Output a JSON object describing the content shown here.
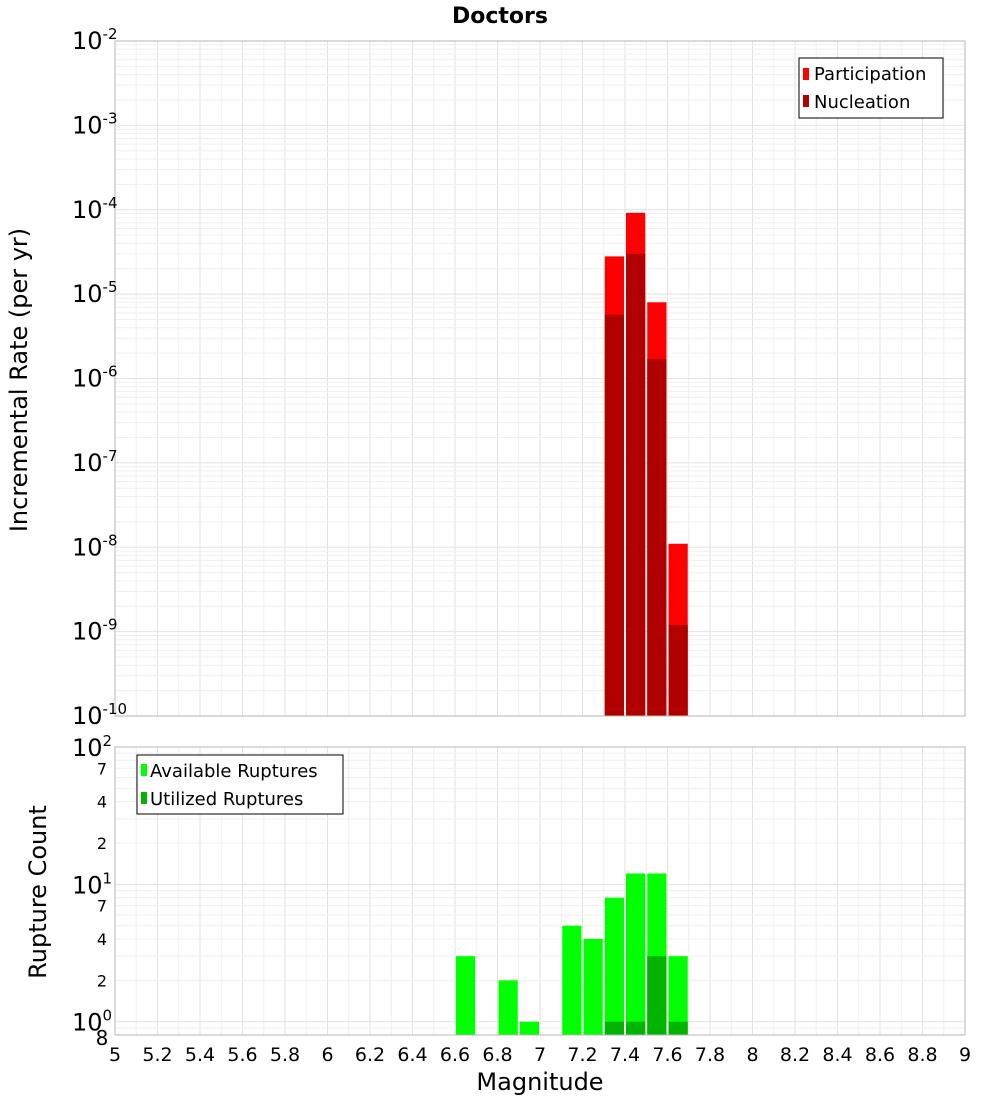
{
  "chart_data": [
    {
      "type": "bar",
      "title": "Doctors",
      "ylabel": "Incremental Rate (per yr)",
      "yscale": "log",
      "ylim": [
        1e-10,
        0.01
      ],
      "bin_width": 0.1,
      "y_tick_labels": [
        {
          "base": "10",
          "exp": "-10"
        },
        {
          "base": "10",
          "exp": "-9"
        },
        {
          "base": "10",
          "exp": "-8"
        },
        {
          "base": "10",
          "exp": "-7"
        },
        {
          "base": "10",
          "exp": "-6"
        },
        {
          "base": "10",
          "exp": "-5"
        },
        {
          "base": "10",
          "exp": "-4"
        },
        {
          "base": "10",
          "exp": "-3"
        },
        {
          "base": "10",
          "exp": "-2"
        }
      ],
      "legend": [
        {
          "label": "Participation",
          "color": "#ff0000"
        },
        {
          "label": "Nucleation",
          "color": "#b00000"
        }
      ],
      "series": [
        {
          "name": "Participation",
          "color": "#ff0000",
          "x": [
            7.35,
            7.45,
            7.55,
            7.65
          ],
          "values": [
            2.8e-05,
            9.2e-05,
            8e-06,
            1.1e-08
          ]
        },
        {
          "name": "Nucleation",
          "color": "#b00000",
          "x": [
            7.35,
            7.45,
            7.55,
            7.65
          ],
          "values": [
            5.7e-06,
            3e-05,
            1.7e-06,
            1.2e-09
          ]
        }
      ]
    },
    {
      "type": "bar",
      "ylabel": "Rupture Count",
      "yscale": "log",
      "ylim": [
        0.8,
        100
      ],
      "bin_width": 0.1,
      "xlabel": "Magnitude",
      "xlim": [
        5,
        9
      ],
      "x_ticks": [
        "5",
        "5.2",
        "5.4",
        "5.6",
        "5.8",
        "6",
        "6.2",
        "6.4",
        "6.6",
        "6.8",
        "7",
        "7.2",
        "7.4",
        "7.6",
        "7.8",
        "8",
        "8.2",
        "8.4",
        "8.6",
        "8.8",
        "9"
      ],
      "y_tick_labels": [
        {
          "base": "10",
          "exp": "0"
        },
        {
          "base": "10",
          "exp": "1"
        },
        {
          "base": "10",
          "exp": "2"
        }
      ],
      "y_minor_labels": [
        "8",
        "2",
        "4",
        "7",
        "2",
        "4",
        "7"
      ],
      "legend": [
        {
          "label": "Available Ruptures",
          "color": "#00ff00"
        },
        {
          "label": "Utilized Ruptures",
          "color": "#00b400"
        }
      ],
      "series": [
        {
          "name": "Available Ruptures",
          "color": "#00ff00",
          "x": [
            6.65,
            6.85,
            6.95,
            7.15,
            7.25,
            7.35,
            7.45,
            7.55,
            7.65
          ],
          "values": [
            3,
            2,
            1,
            5,
            4,
            8,
            12,
            12,
            3
          ]
        },
        {
          "name": "Utilized Ruptures",
          "color": "#00b400",
          "x": [
            7.35,
            7.45,
            7.55,
            7.65
          ],
          "values": [
            1,
            1,
            3,
            1
          ]
        }
      ]
    }
  ]
}
